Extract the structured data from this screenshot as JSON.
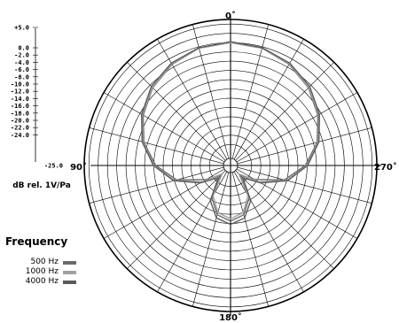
{
  "chart_data": {
    "type": "polar",
    "unit_label": "dB rel. 1V/Pa",
    "r_tick_labels": [
      "+5.0",
      "0.0",
      "-2.0",
      "-4.0",
      "-6.0",
      "-8.0",
      "-10.0",
      "-12.0",
      "-14.0",
      "-16.0",
      "-18.0",
      "-20.0",
      "-22.0",
      "-24.0",
      "-25.0"
    ],
    "r_range": [
      -25,
      5
    ],
    "angle_labels": {
      "top": "0˚",
      "left": "90˚",
      "right": "270˚",
      "bottom": "180˚"
    },
    "legend_title": "Frequency",
    "legend_position": "bottom-left",
    "series": [
      {
        "name": "500 Hz",
        "color": "#6a6a6a",
        "angles": [
          0,
          15,
          30,
          45,
          60,
          75,
          90,
          105,
          120,
          135,
          150,
          165,
          180
        ],
        "values": [
          0,
          -0.3,
          -1.3,
          -2.8,
          -4.8,
          -7.2,
          -10.4,
          -14.5,
          -20.5,
          -23.5,
          -18.5,
          -15.5,
          -14.5
        ]
      },
      {
        "name": "1000 Hz",
        "color": "#a0a0a0",
        "angles": [
          0,
          15,
          30,
          45,
          60,
          75,
          90,
          105,
          120,
          135,
          150,
          165,
          180
        ],
        "values": [
          0,
          -0.3,
          -1.2,
          -2.7,
          -4.6,
          -7.0,
          -10.1,
          -14.0,
          -19.5,
          -24.0,
          -19.0,
          -16.0,
          -15.0
        ]
      },
      {
        "name": "4000 Hz",
        "color": "#5a5a5a",
        "angles": [
          0,
          15,
          30,
          45,
          60,
          75,
          90,
          105,
          120,
          135,
          150,
          165,
          180
        ],
        "values": [
          0.2,
          -0.2,
          -1.0,
          -2.4,
          -4.4,
          -6.8,
          -9.9,
          -13.8,
          -19.0,
          -22.8,
          -17.8,
          -14.8,
          -13.8
        ]
      }
    ]
  }
}
